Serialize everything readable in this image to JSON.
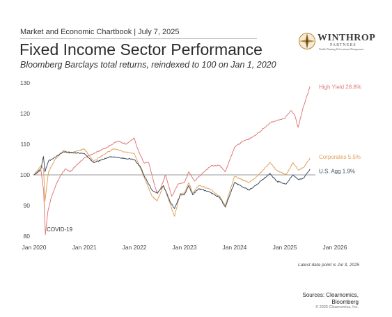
{
  "header": {
    "kicker": "Market and Economic Chartbook | July 7, 2025",
    "title": "Fixed Income Sector Performance",
    "subtitle": "Bloomberg Barclays total returns, reindexed to 100 on Jan 1, 2020"
  },
  "logo": {
    "name": "WINTHROP",
    "sub": "PARTNERS",
    "tagline": "Wealth Planning & Investment Management"
  },
  "footer": {
    "note": "Latest data point is Jul 3, 2025",
    "sources_line1": "Sources: Clearnomics,",
    "sources_line2": "Bloomberg",
    "copyright": "© 2025 Clearnomics, Inc."
  },
  "colors": {
    "high_yield": "#e07b7b",
    "corporates": "#e3a25e",
    "us_agg": "#3e4f62",
    "baseline": "#777777",
    "axis_text": "#444444"
  },
  "chart_data": {
    "type": "line",
    "title": "Fixed Income Sector Performance",
    "xlabel": "",
    "ylabel": "",
    "ylim": [
      80,
      130
    ],
    "y_ticks": [
      80,
      90,
      100,
      110,
      120,
      130
    ],
    "x_ticks": [
      "Jan 2020",
      "Jan 2021",
      "Jan 2022",
      "Jan 2023",
      "Jan 2024",
      "Jan 2025",
      "Jan 2026"
    ],
    "x_range": [
      "2020-01-01",
      "2026-01-01"
    ],
    "grid": false,
    "reference_line": 100,
    "annotations": [
      {
        "text": "COVID-19",
        "x": "2020-03-23",
        "y": 82
      }
    ],
    "series": [
      {
        "name": "High Yield",
        "end_label": "High Yield 28.8%",
        "color_key": "high_yield",
        "points": [
          [
            "2020-01-01",
            100
          ],
          [
            "2020-02-20",
            101.5
          ],
          [
            "2020-03-10",
            95
          ],
          [
            "2020-03-23",
            80.5
          ],
          [
            "2020-04-10",
            88
          ],
          [
            "2020-05-01",
            92
          ],
          [
            "2020-06-10",
            97
          ],
          [
            "2020-07-15",
            100
          ],
          [
            "2020-08-15",
            102
          ],
          [
            "2020-09-20",
            101
          ],
          [
            "2020-11-01",
            103
          ],
          [
            "2020-12-31",
            105.5
          ],
          [
            "2021-02-15",
            106.5
          ],
          [
            "2021-04-01",
            107.5
          ],
          [
            "2021-06-15",
            109
          ],
          [
            "2021-09-01",
            111
          ],
          [
            "2021-11-01",
            110
          ],
          [
            "2021-12-31",
            112
          ],
          [
            "2022-01-20",
            109
          ],
          [
            "2022-03-10",
            104
          ],
          [
            "2022-04-15",
            104
          ],
          [
            "2022-05-20",
            98
          ],
          [
            "2022-06-15",
            94
          ],
          [
            "2022-07-10",
            95.5
          ],
          [
            "2022-08-15",
            100
          ],
          [
            "2022-09-30",
            93
          ],
          [
            "2022-11-15",
            97
          ],
          [
            "2022-12-31",
            97.5
          ],
          [
            "2023-02-01",
            101
          ],
          [
            "2023-03-15",
            98
          ],
          [
            "2023-05-01",
            100
          ],
          [
            "2023-07-15",
            103
          ],
          [
            "2023-09-15",
            103
          ],
          [
            "2023-10-25",
            101
          ],
          [
            "2023-12-31",
            109
          ],
          [
            "2024-03-01",
            111
          ],
          [
            "2024-05-01",
            112
          ],
          [
            "2024-07-01",
            114
          ],
          [
            "2024-09-15",
            117
          ],
          [
            "2024-12-31",
            118.5
          ],
          [
            "2025-02-15",
            121
          ],
          [
            "2025-03-15",
            119.5
          ],
          [
            "2025-04-08",
            115.5
          ],
          [
            "2025-05-15",
            122
          ],
          [
            "2025-07-03",
            128.8
          ]
        ]
      },
      {
        "name": "Corporates",
        "end_label": "Corporates 5.5%",
        "color_key": "corporates",
        "points": [
          [
            "2020-01-01",
            100
          ],
          [
            "2020-02-20",
            103
          ],
          [
            "2020-03-10",
            102
          ],
          [
            "2020-03-20",
            91.5
          ],
          [
            "2020-04-15",
            101
          ],
          [
            "2020-06-01",
            105
          ],
          [
            "2020-08-05",
            108
          ],
          [
            "2020-09-15",
            107
          ],
          [
            "2020-12-31",
            108.5
          ],
          [
            "2021-03-10",
            104.5
          ],
          [
            "2021-05-01",
            106
          ],
          [
            "2021-08-01",
            108.5
          ],
          [
            "2021-10-15",
            107.5
          ],
          [
            "2021-12-31",
            107
          ],
          [
            "2022-02-15",
            102
          ],
          [
            "2022-03-15",
            99
          ],
          [
            "2022-05-10",
            93
          ],
          [
            "2022-06-15",
            91.5
          ],
          [
            "2022-08-01",
            96.5
          ],
          [
            "2022-09-15",
            91
          ],
          [
            "2022-10-20",
            86.5
          ],
          [
            "2022-12-01",
            94
          ],
          [
            "2022-12-31",
            94
          ],
          [
            "2023-02-01",
            97.5
          ],
          [
            "2023-03-01",
            94
          ],
          [
            "2023-04-15",
            96.5
          ],
          [
            "2023-07-01",
            95.5
          ],
          [
            "2023-09-15",
            93
          ],
          [
            "2023-10-25",
            90
          ],
          [
            "2023-12-31",
            99.5
          ],
          [
            "2024-04-15",
            97.5
          ],
          [
            "2024-06-01",
            99
          ],
          [
            "2024-09-15",
            104
          ],
          [
            "2024-11-01",
            101.5
          ],
          [
            "2025-01-10",
            100
          ],
          [
            "2025-03-01",
            104
          ],
          [
            "2025-04-10",
            101.5
          ],
          [
            "2025-05-20",
            102.5
          ],
          [
            "2025-07-03",
            105.5
          ]
        ]
      },
      {
        "name": "U.S. Agg",
        "end_label": "U.S. Agg 1.9%",
        "color_key": "us_agg",
        "points": [
          [
            "2020-01-01",
            100
          ],
          [
            "2020-02-20",
            102
          ],
          [
            "2020-03-09",
            106
          ],
          [
            "2020-03-20",
            101
          ],
          [
            "2020-04-15",
            104.5
          ],
          [
            "2020-08-05",
            107.5
          ],
          [
            "2020-12-31",
            107
          ],
          [
            "2021-03-10",
            104
          ],
          [
            "2021-07-15",
            106
          ],
          [
            "2021-12-31",
            105
          ],
          [
            "2022-02-15",
            102.5
          ],
          [
            "2022-03-15",
            99.5
          ],
          [
            "2022-05-10",
            95
          ],
          [
            "2022-06-15",
            94
          ],
          [
            "2022-08-01",
            96.5
          ],
          [
            "2022-09-15",
            91.5
          ],
          [
            "2022-10-20",
            89
          ],
          [
            "2022-12-01",
            93.5
          ],
          [
            "2022-12-31",
            93.5
          ],
          [
            "2023-02-01",
            96.5
          ],
          [
            "2023-03-01",
            93.5
          ],
          [
            "2023-04-15",
            95.5
          ],
          [
            "2023-07-01",
            94.5
          ],
          [
            "2023-09-15",
            92.5
          ],
          [
            "2023-10-25",
            89.5
          ],
          [
            "2023-12-31",
            97.5
          ],
          [
            "2024-04-15",
            95
          ],
          [
            "2024-06-01",
            96.5
          ],
          [
            "2024-09-15",
            100.5
          ],
          [
            "2024-11-01",
            98
          ],
          [
            "2025-01-10",
            97
          ],
          [
            "2025-03-01",
            100
          ],
          [
            "2025-04-10",
            98.5
          ],
          [
            "2025-05-20",
            99
          ],
          [
            "2025-07-03",
            101.9
          ]
        ]
      }
    ]
  }
}
